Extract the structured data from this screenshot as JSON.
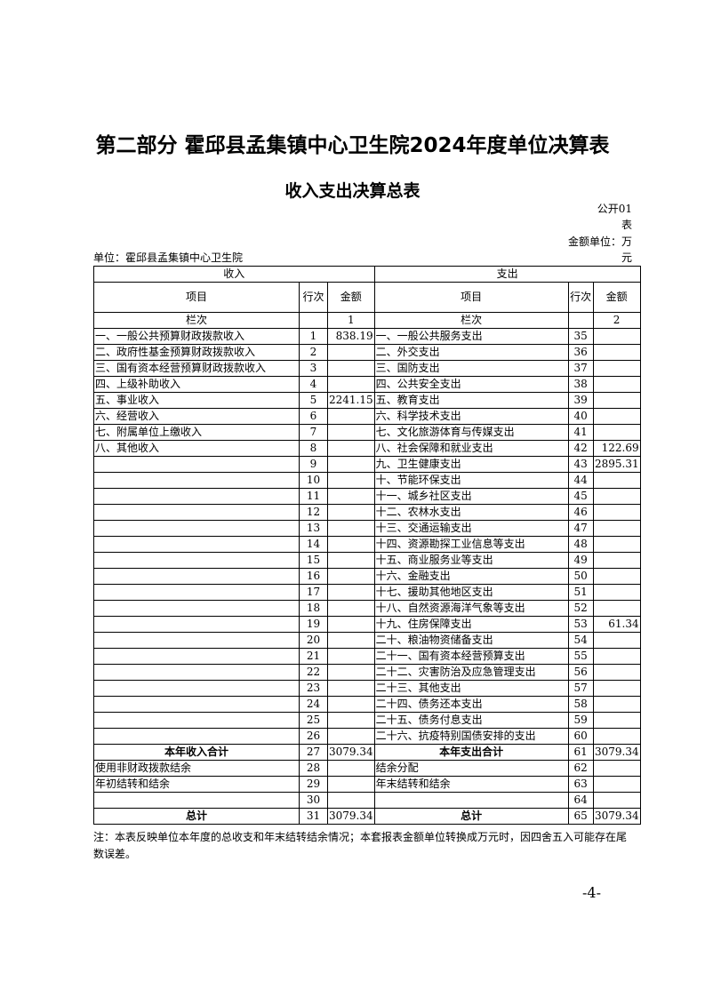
{
  "title": "第二部分 霍邱县孟集镇中心卫生院2024年度单位决算表",
  "subtitle": "收入支出决算总表",
  "table_code_1": "公开01",
  "table_code_2": "表",
  "unit_label_1": "金额单位：万",
  "unit_label_2": "元",
  "org": "单位：霍邱县孟集镇中心卫生院",
  "headers": {
    "income": "收入",
    "expense": "支出",
    "item": "项目",
    "line": "行次",
    "amount": "金额",
    "col_label": "栏次",
    "col_income": "1",
    "col_expense": "2"
  },
  "rows": [
    [
      "一、一般公共预算财政拨款收入",
      "1",
      "838.19",
      "一、一般公共服务支出",
      "35",
      ""
    ],
    [
      "二、政府性基金预算财政拨款收入",
      "2",
      "",
      "二、外交支出",
      "36",
      ""
    ],
    [
      "三、国有资本经营预算财政拨款收入",
      "3",
      "",
      "三、国防支出",
      "37",
      ""
    ],
    [
      "四、上级补助收入",
      "4",
      "",
      "四、公共安全支出",
      "38",
      ""
    ],
    [
      "五、事业收入",
      "5",
      "2241.15",
      "五、教育支出",
      "39",
      ""
    ],
    [
      "六、经营收入",
      "6",
      "",
      "六、科学技术支出",
      "40",
      ""
    ],
    [
      "七、附属单位上缴收入",
      "7",
      "",
      "七、文化旅游体育与传媒支出",
      "41",
      ""
    ],
    [
      "八、其他收入",
      "8",
      "",
      "八、社会保障和就业支出",
      "42",
      "122.69"
    ],
    [
      "",
      "9",
      "",
      "九、卫生健康支出",
      "43",
      "2895.31"
    ],
    [
      "",
      "10",
      "",
      "十、节能环保支出",
      "44",
      ""
    ],
    [
      "",
      "11",
      "",
      "十一、城乡社区支出",
      "45",
      ""
    ],
    [
      "",
      "12",
      "",
      "十二、农林水支出",
      "46",
      ""
    ],
    [
      "",
      "13",
      "",
      "十三、交通运输支出",
      "47",
      ""
    ],
    [
      "",
      "14",
      "",
      "十四、资源勘探工业信息等支出",
      "48",
      ""
    ],
    [
      "",
      "15",
      "",
      "十五、商业服务业等支出",
      "49",
      ""
    ],
    [
      "",
      "16",
      "",
      "十六、金融支出",
      "50",
      ""
    ],
    [
      "",
      "17",
      "",
      "十七、援助其他地区支出",
      "51",
      ""
    ],
    [
      "",
      "18",
      "",
      "十八、自然资源海洋气象等支出",
      "52",
      ""
    ],
    [
      "",
      "19",
      "",
      "十九、住房保障支出",
      "53",
      "61.34"
    ],
    [
      "",
      "20",
      "",
      "二十、粮油物资储备支出",
      "54",
      ""
    ],
    [
      "",
      "21",
      "",
      "二十一、国有资本经营预算支出",
      "55",
      ""
    ],
    [
      "",
      "22",
      "",
      "二十二、灾害防治及应急管理支出",
      "56",
      ""
    ],
    [
      "",
      "23",
      "",
      "二十三、其他支出",
      "57",
      ""
    ],
    [
      "",
      "24",
      "",
      "二十四、债务还本支出",
      "58",
      ""
    ],
    [
      "",
      "25",
      "",
      "二十五、债务付息支出",
      "59",
      ""
    ],
    [
      "",
      "26",
      "",
      "二十六、抗疫特别国债安排的支出",
      "60",
      ""
    ],
    [
      "本年收入合计",
      "27",
      "3079.34",
      "本年支出合计",
      "61",
      "3079.34"
    ],
    [
      "使用非财政拨款结余",
      "28",
      "",
      "结余分配",
      "62",
      ""
    ],
    [
      "年初结转和结余",
      "29",
      "",
      "年末结转和结余",
      "63",
      ""
    ],
    [
      "",
      "30",
      "",
      "",
      "64",
      ""
    ],
    [
      "总计",
      "31",
      "3079.34",
      "总计",
      "65",
      "3079.34"
    ]
  ],
  "note": "注：本表反映单位本年度的总收支和年末结转结余情况；本套报表金额单位转换成万元时，因四舍五入可能存在尾数误差。",
  "page_number": "-4-"
}
